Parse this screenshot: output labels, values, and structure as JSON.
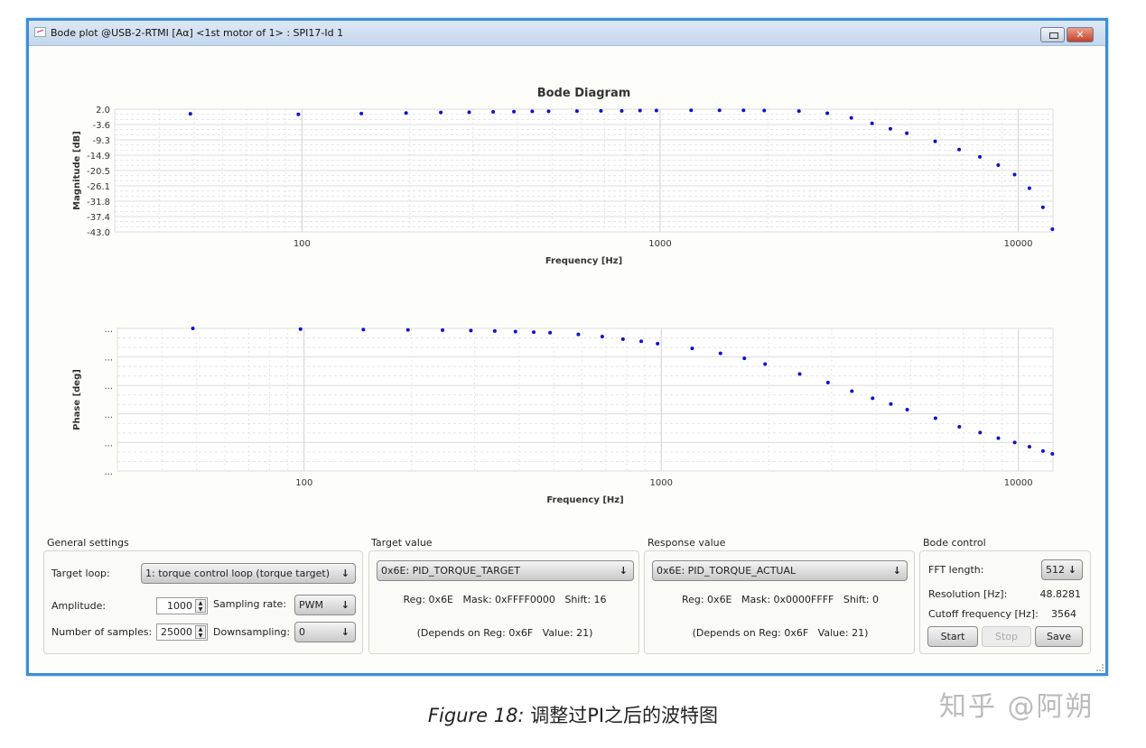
{
  "window": {
    "title": "Bode plot @USB-2-RTMI [Aα] <1st motor of 1> : SPI17-Id 1",
    "close_glyph": "✕"
  },
  "chart_data": [
    {
      "type": "scatter",
      "title": "Bode Diagram",
      "xlabel": "Frequency [Hz]",
      "ylabel": "Magnitude [dB]",
      "x_scale": "log",
      "xlim": [
        30,
        12500
      ],
      "ylim": [
        -43.0,
        2.0
      ],
      "xticks": [
        "100",
        "1000",
        "10000"
      ],
      "yticks": [
        "2.0",
        "-3.6",
        "-9.3",
        "-14.9",
        "-20.5",
        "-26.1",
        "-31.8",
        "-37.4",
        "-43.0"
      ],
      "grid": true,
      "color": "#1010d0",
      "x": [
        48.8,
        97.7,
        146.5,
        195.3,
        244.1,
        293.0,
        341.8,
        390.6,
        439.5,
        488.3,
        585.9,
        683.6,
        781.3,
        878.9,
        976.6,
        1220.7,
        1464.8,
        1709.0,
        1953.1,
        2441.4,
        2929.7,
        3418.0,
        3906.3,
        4394.5,
        4882.8,
        5859.4,
        6835.9,
        7812.5,
        8789.1,
        9765.6,
        10742.2,
        11718.8,
        12451.2
      ],
      "y": [
        0.3,
        0.1,
        0.4,
        0.6,
        0.8,
        0.9,
        1.0,
        1.1,
        1.2,
        1.2,
        1.3,
        1.4,
        1.4,
        1.5,
        1.5,
        1.6,
        1.6,
        1.6,
        1.5,
        1.3,
        0.5,
        -1.2,
        -3.2,
        -5.2,
        -6.8,
        -9.8,
        -12.8,
        -15.5,
        -18.5,
        -22,
        -27,
        -34,
        -42
      ]
    },
    {
      "type": "scatter",
      "title": "",
      "xlabel": "Frequency [Hz]",
      "ylabel": "Phase [deg]",
      "x_scale": "log",
      "xlim": [
        30,
        12500
      ],
      "ylim": [
        -100,
        0
      ],
      "xticks": [
        "100",
        "1000",
        "10000"
      ],
      "yticks": [
        "...",
        "...",
        "...",
        "...",
        "...",
        "..."
      ],
      "grid": true,
      "color": "#1010d0",
      "x": [
        48.8,
        97.7,
        146.5,
        195.3,
        244.1,
        293.0,
        341.8,
        390.6,
        439.5,
        488.3,
        585.9,
        683.6,
        781.3,
        878.9,
        976.6,
        1220.7,
        1464.8,
        1709.0,
        1953.1,
        2441.4,
        2929.7,
        3418.0,
        3906.3,
        4394.5,
        4882.8,
        5859.4,
        6835.9,
        7812.5,
        8789.1,
        9765.6,
        10742.2,
        11718.8,
        12451.2
      ],
      "y": [
        0,
        -0.5,
        -0.8,
        -1,
        -1.2,
        -1.5,
        -1.8,
        -2.2,
        -2.6,
        -3,
        -4.2,
        -5.7,
        -7.5,
        -9,
        -10.7,
        -14,
        -17.5,
        -21,
        -25,
        -32,
        -38,
        -44,
        -49,
        -53,
        -57,
        -63,
        -69,
        -73,
        -77,
        -80,
        -83,
        -86,
        -88
      ]
    }
  ],
  "general": {
    "title": "General settings",
    "target_loop_label": "Target loop:",
    "target_loop_value": "1: torque control loop (torque target)",
    "amplitude_label": "Amplitude:",
    "amplitude_value": "1000",
    "sampling_rate_label": "Sampling rate:",
    "sampling_rate_value": "PWM",
    "samples_label": "Number of samples:",
    "samples_value": "25000",
    "downsampling_label": "Downsampling:",
    "downsampling_value": "0"
  },
  "target": {
    "title": "Target value",
    "select": "0x6E: PID_TORQUE_TARGET",
    "info": "Reg: 0x6E   Mask: 0xFFFF0000   Shift: 16",
    "depends": "(Depends on Reg: 0x6F   Value: 21)"
  },
  "response": {
    "title": "Response value",
    "select": "0x6E: PID_TORQUE_ACTUAL",
    "info": "Reg: 0x6E   Mask: 0x0000FFFF   Shift: 0",
    "depends": "(Depends on Reg: 0x6F   Value: 21)"
  },
  "bode": {
    "title": "Bode control",
    "fft_label": "FFT length:",
    "fft_value": "512",
    "resolution_label": "Resolution [Hz]:",
    "resolution_value": "48.8281",
    "cutoff_label": "Cutoff frequency [Hz]:",
    "cutoff_value": "3564",
    "start": "Start",
    "stop": "Stop",
    "save": "Save"
  },
  "caption": {
    "prefix": "Figure 18:",
    "text": " 调整过PI之后的波特图"
  },
  "watermark": "知乎 @阿朔",
  "dropdown_arrow": "↓"
}
